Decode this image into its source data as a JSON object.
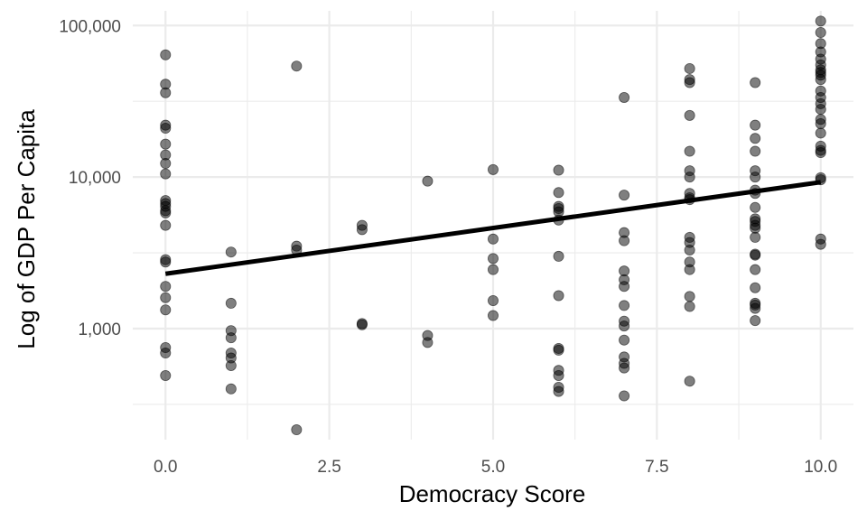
{
  "chart_data": {
    "type": "scatter",
    "title": "",
    "xlabel": "Democracy Score",
    "ylabel": "Log of GDP Per Capita",
    "y_scale": "log10",
    "xlim": [
      -0.5,
      10.5
    ],
    "ylim": [
      185,
      125000
    ],
    "x_ticks": [
      0,
      2.5,
      5,
      7.5,
      10
    ],
    "x_tick_labels": [
      "0.0",
      "2.5",
      "5.0",
      "7.5",
      "10.0"
    ],
    "y_ticks": [
      1000,
      10000,
      100000
    ],
    "y_tick_labels": [
      "1,000",
      "10,000",
      "100,000"
    ],
    "y_minor_gridlines": [
      316,
      3162,
      31623
    ],
    "grid": true,
    "legend": "none",
    "colors": {
      "point": "#000000",
      "trend": "#000000",
      "grid": "#ebebeb"
    },
    "trend_line": {
      "x": [
        0,
        10
      ],
      "y": [
        2300,
        9250
      ]
    },
    "points": [
      {
        "x": 0,
        "y": 64000
      },
      {
        "x": 0,
        "y": 41000
      },
      {
        "x": 0,
        "y": 36000
      },
      {
        "x": 0,
        "y": 22000
      },
      {
        "x": 0,
        "y": 21000
      },
      {
        "x": 0,
        "y": 16500
      },
      {
        "x": 0,
        "y": 14000
      },
      {
        "x": 0,
        "y": 12300
      },
      {
        "x": 0,
        "y": 10500
      },
      {
        "x": 0,
        "y": 7000
      },
      {
        "x": 0,
        "y": 6700
      },
      {
        "x": 0,
        "y": 6400
      },
      {
        "x": 0,
        "y": 6000
      },
      {
        "x": 0,
        "y": 5800
      },
      {
        "x": 0,
        "y": 4800
      },
      {
        "x": 0,
        "y": 2850
      },
      {
        "x": 0,
        "y": 2750
      },
      {
        "x": 0,
        "y": 1900
      },
      {
        "x": 0,
        "y": 1600
      },
      {
        "x": 0,
        "y": 1330
      },
      {
        "x": 0,
        "y": 750
      },
      {
        "x": 0,
        "y": 690
      },
      {
        "x": 0,
        "y": 490
      },
      {
        "x": 1,
        "y": 3200
      },
      {
        "x": 1,
        "y": 1470
      },
      {
        "x": 1,
        "y": 970
      },
      {
        "x": 1,
        "y": 870
      },
      {
        "x": 1,
        "y": 690
      },
      {
        "x": 1,
        "y": 640
      },
      {
        "x": 1,
        "y": 570
      },
      {
        "x": 1,
        "y": 400
      },
      {
        "x": 2,
        "y": 54000
      },
      {
        "x": 2,
        "y": 3500
      },
      {
        "x": 2,
        "y": 3300
      },
      {
        "x": 2,
        "y": 215
      },
      {
        "x": 3,
        "y": 4800
      },
      {
        "x": 3,
        "y": 4500
      },
      {
        "x": 3,
        "y": 1080
      },
      {
        "x": 3,
        "y": 1060
      },
      {
        "x": 4,
        "y": 9400
      },
      {
        "x": 4,
        "y": 900
      },
      {
        "x": 4,
        "y": 810
      },
      {
        "x": 5,
        "y": 11200
      },
      {
        "x": 5,
        "y": 3900
      },
      {
        "x": 5,
        "y": 2900
      },
      {
        "x": 5,
        "y": 2450
      },
      {
        "x": 5,
        "y": 1530
      },
      {
        "x": 5,
        "y": 1220
      },
      {
        "x": 6,
        "y": 11100
      },
      {
        "x": 6,
        "y": 7900
      },
      {
        "x": 6,
        "y": 6400
      },
      {
        "x": 6,
        "y": 6200
      },
      {
        "x": 6,
        "y": 5900
      },
      {
        "x": 6,
        "y": 5200
      },
      {
        "x": 6,
        "y": 3000
      },
      {
        "x": 6,
        "y": 1650
      },
      {
        "x": 6,
        "y": 740
      },
      {
        "x": 6,
        "y": 720
      },
      {
        "x": 6,
        "y": 530
      },
      {
        "x": 6,
        "y": 490
      },
      {
        "x": 6,
        "y": 410
      },
      {
        "x": 6,
        "y": 385
      },
      {
        "x": 7,
        "y": 33500
      },
      {
        "x": 7,
        "y": 7600
      },
      {
        "x": 7,
        "y": 4300
      },
      {
        "x": 7,
        "y": 3800
      },
      {
        "x": 7,
        "y": 2400
      },
      {
        "x": 7,
        "y": 2100
      },
      {
        "x": 7,
        "y": 1900
      },
      {
        "x": 7,
        "y": 1420
      },
      {
        "x": 7,
        "y": 1120
      },
      {
        "x": 7,
        "y": 1040
      },
      {
        "x": 7,
        "y": 840
      },
      {
        "x": 7,
        "y": 650
      },
      {
        "x": 7,
        "y": 590
      },
      {
        "x": 7,
        "y": 550
      },
      {
        "x": 7,
        "y": 360
      },
      {
        "x": 8,
        "y": 52000
      },
      {
        "x": 8,
        "y": 44000
      },
      {
        "x": 8,
        "y": 42000
      },
      {
        "x": 8,
        "y": 25500
      },
      {
        "x": 8,
        "y": 14800
      },
      {
        "x": 8,
        "y": 11000
      },
      {
        "x": 8,
        "y": 10000
      },
      {
        "x": 8,
        "y": 7800
      },
      {
        "x": 8,
        "y": 7300
      },
      {
        "x": 8,
        "y": 7100
      },
      {
        "x": 8,
        "y": 4000
      },
      {
        "x": 8,
        "y": 3700
      },
      {
        "x": 8,
        "y": 3300
      },
      {
        "x": 8,
        "y": 2750
      },
      {
        "x": 8,
        "y": 2450
      },
      {
        "x": 8,
        "y": 1630
      },
      {
        "x": 8,
        "y": 1400
      },
      {
        "x": 8,
        "y": 450
      },
      {
        "x": 9,
        "y": 42000
      },
      {
        "x": 9,
        "y": 22000
      },
      {
        "x": 9,
        "y": 18000
      },
      {
        "x": 9,
        "y": 14800
      },
      {
        "x": 9,
        "y": 11000
      },
      {
        "x": 9,
        "y": 10000
      },
      {
        "x": 9,
        "y": 8200
      },
      {
        "x": 9,
        "y": 7800
      },
      {
        "x": 9,
        "y": 6300
      },
      {
        "x": 9,
        "y": 5300
      },
      {
        "x": 9,
        "y": 5100
      },
      {
        "x": 9,
        "y": 4800
      },
      {
        "x": 9,
        "y": 4600
      },
      {
        "x": 9,
        "y": 4000
      },
      {
        "x": 9,
        "y": 3100
      },
      {
        "x": 9,
        "y": 3050
      },
      {
        "x": 9,
        "y": 2450
      },
      {
        "x": 9,
        "y": 1860
      },
      {
        "x": 9,
        "y": 1470
      },
      {
        "x": 9,
        "y": 1430
      },
      {
        "x": 9,
        "y": 1360
      },
      {
        "x": 9,
        "y": 1130
      },
      {
        "x": 10,
        "y": 107000
      },
      {
        "x": 10,
        "y": 90000
      },
      {
        "x": 10,
        "y": 76000
      },
      {
        "x": 10,
        "y": 67000
      },
      {
        "x": 10,
        "y": 60000
      },
      {
        "x": 10,
        "y": 55000
      },
      {
        "x": 10,
        "y": 51000
      },
      {
        "x": 10,
        "y": 49000
      },
      {
        "x": 10,
        "y": 47000
      },
      {
        "x": 10,
        "y": 44000
      },
      {
        "x": 10,
        "y": 37000
      },
      {
        "x": 10,
        "y": 33500
      },
      {
        "x": 10,
        "y": 30500
      },
      {
        "x": 10,
        "y": 28000
      },
      {
        "x": 10,
        "y": 24000
      },
      {
        "x": 10,
        "y": 22500
      },
      {
        "x": 10,
        "y": 19500
      },
      {
        "x": 10,
        "y": 16000
      },
      {
        "x": 10,
        "y": 15000
      },
      {
        "x": 10,
        "y": 14500
      },
      {
        "x": 10,
        "y": 9900
      },
      {
        "x": 10,
        "y": 9600
      },
      {
        "x": 10,
        "y": 3900
      },
      {
        "x": 10,
        "y": 3600
      }
    ]
  }
}
